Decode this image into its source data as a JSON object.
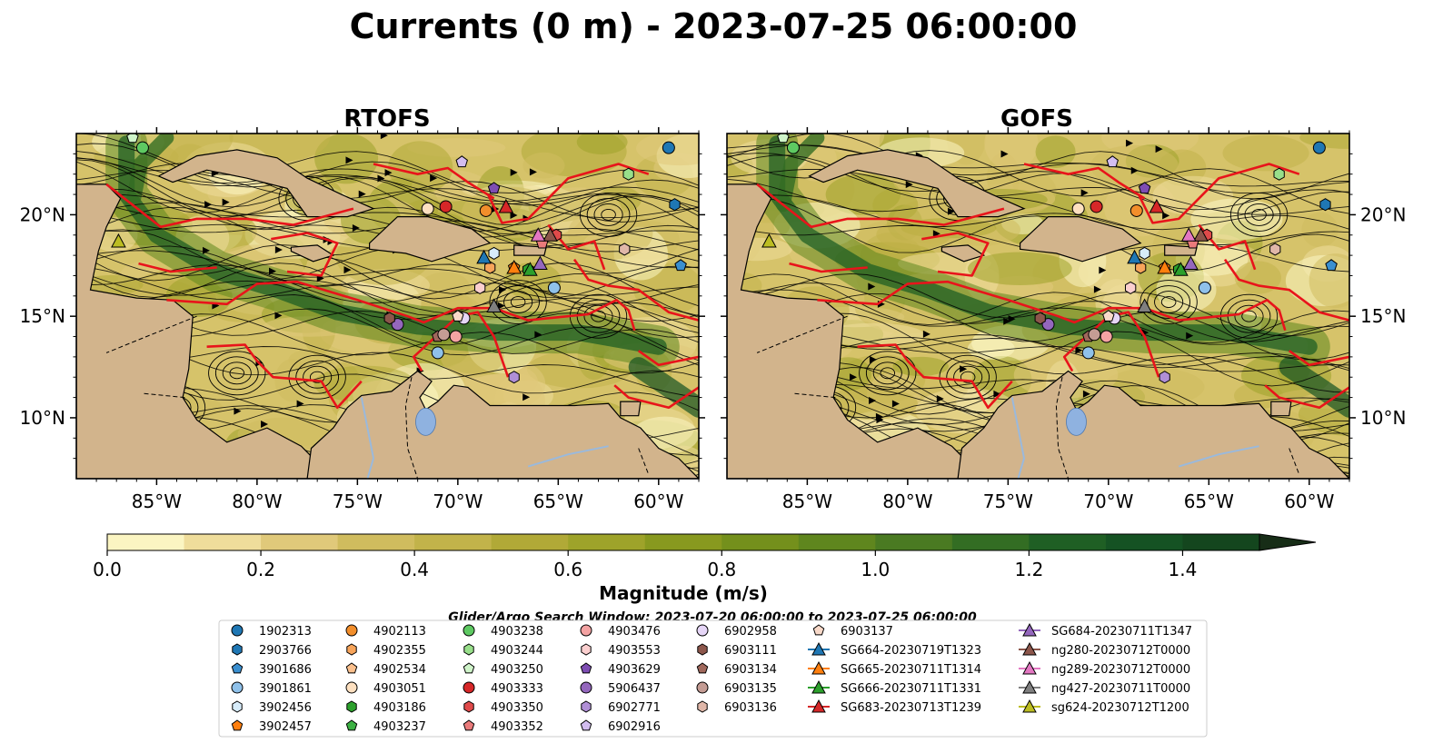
{
  "figure": {
    "title": "Currents (0 m) - 2023-07-25 06:00:00",
    "window_note": "Glider/Argo Search Window: 2023-07-20 06:00:00 to 2023-07-25 06:00:00"
  },
  "chart_data": {
    "type": "heatmap",
    "description_axes": {
      "x_ticks": [
        "85°W",
        "80°W",
        "75°W",
        "70°W",
        "65°W",
        "60°W"
      ],
      "x_tick_values": [
        -85,
        -80,
        -75,
        -70,
        -65,
        -60
      ],
      "y_ticks": [
        "20°N",
        "15°N",
        "10°N"
      ],
      "y_tick_values": [
        20,
        15,
        10
      ],
      "xlim": [
        -89,
        -58
      ],
      "ylim": [
        7,
        24
      ]
    },
    "panels": [
      {
        "title": "RTOFS"
      },
      {
        "title": "GOFS"
      }
    ],
    "colorbar": {
      "label": "Magnitude (m/s)",
      "ticks": [
        "0.0",
        "0.2",
        "0.4",
        "0.6",
        "0.8",
        "1.0",
        "1.2",
        "1.4"
      ],
      "tick_values": [
        0.0,
        0.2,
        0.4,
        0.6,
        0.8,
        1.0,
        1.2,
        1.4
      ],
      "range": [
        0.0,
        1.5
      ],
      "extend": "max",
      "colors": [
        "#fbf5c2",
        "#efdd9b",
        "#e0c97a",
        "#d0bc5e",
        "#c2b34a",
        "#b1a937",
        "#9ea32a",
        "#88991f",
        "#74901c",
        "#5f861e",
        "#4a7a22",
        "#336d23",
        "#1f5f24",
        "#155223",
        "#14461e",
        "#163a1b",
        "#172d17"
      ]
    },
    "legend": {
      "columns": [
        [
          {
            "label": "1902313",
            "marker": "circle",
            "color": "#1f77b4"
          },
          {
            "label": "2903766",
            "marker": "hexagon",
            "color": "#1f77b4"
          },
          {
            "label": "3901686",
            "marker": "pentagon",
            "color": "#3a8fd0"
          },
          {
            "label": "3901861",
            "marker": "circle",
            "color": "#8fc1ea"
          },
          {
            "label": "3902456",
            "marker": "hexagon",
            "color": "#d7ecfa"
          },
          {
            "label": "3902457",
            "marker": "pentagon",
            "color": "#ff7f0e"
          }
        ],
        [
          {
            "label": "4902113",
            "marker": "circle",
            "color": "#f28e2b"
          },
          {
            "label": "4902355",
            "marker": "hexagon",
            "color": "#f7a45a"
          },
          {
            "label": "4902534",
            "marker": "pentagon",
            "color": "#fbc08d"
          },
          {
            "label": "4903051",
            "marker": "circle",
            "color": "#fde0c0"
          },
          {
            "label": "4903186",
            "marker": "hexagon",
            "color": "#2ca02c"
          },
          {
            "label": "4903237",
            "marker": "pentagon",
            "color": "#3cb043"
          }
        ],
        [
          {
            "label": "4903238",
            "marker": "circle",
            "color": "#5ec962"
          },
          {
            "label": "4903244",
            "marker": "hexagon",
            "color": "#98df8a"
          },
          {
            "label": "4903250",
            "marker": "pentagon",
            "color": "#cff4c9"
          },
          {
            "label": "4903333",
            "marker": "circle",
            "color": "#d62728"
          },
          {
            "label": "4903350",
            "marker": "hexagon",
            "color": "#e04a4a"
          },
          {
            "label": "4903352",
            "marker": "pentagon",
            "color": "#ea7b7b"
          }
        ],
        [
          {
            "label": "4903476",
            "marker": "circle",
            "color": "#f4a3a3"
          },
          {
            "label": "4903553",
            "marker": "hexagon",
            "color": "#fbcfcf"
          },
          {
            "label": "4903629",
            "marker": "pentagon",
            "color": "#7e4db3"
          },
          {
            "label": "5906437",
            "marker": "circle",
            "color": "#9467bd"
          },
          {
            "label": "6902771",
            "marker": "hexagon",
            "color": "#b08fd6"
          },
          {
            "label": "6902916",
            "marker": "pentagon",
            "color": "#d3bdf0"
          }
        ],
        [
          {
            "label": "6902958",
            "marker": "circle",
            "color": "#e6d6f7"
          },
          {
            "label": "6903111",
            "marker": "hexagon",
            "color": "#8c564b"
          },
          {
            "label": "6903134",
            "marker": "pentagon",
            "color": "#a0685c"
          },
          {
            "label": "6903135",
            "marker": "circle",
            "color": "#c49c94"
          },
          {
            "label": "6903136",
            "marker": "hexagon",
            "color": "#e0b7a9"
          }
        ],
        [
          {
            "label": "6903137",
            "marker": "pentagon",
            "color": "#f8d9c9"
          },
          {
            "label": "SG664-20230719T1323",
            "marker": "triangle-line",
            "color": "#1f77b4"
          },
          {
            "label": "SG665-20230711T1314",
            "marker": "triangle-line",
            "color": "#ff7f0e"
          },
          {
            "label": "SG666-20230711T1331",
            "marker": "triangle-line",
            "color": "#2ca02c"
          },
          {
            "label": "SG683-20230713T1239",
            "marker": "triangle-line",
            "color": "#d62728"
          }
        ],
        [
          {
            "label": "SG684-20230711T1347",
            "marker": "triangle-line",
            "color": "#9467bd"
          },
          {
            "label": "ng280-20230712T0000",
            "marker": "triangle-line",
            "color": "#8c564b"
          },
          {
            "label": "ng289-20230712T0000",
            "marker": "triangle-line",
            "color": "#e377c2"
          },
          {
            "label": "ng427-20230711T0000",
            "marker": "triangle-line",
            "color": "#7f7f7f"
          },
          {
            "label": "sg624-20230712T1200",
            "marker": "triangle-line",
            "color": "#bcbd22"
          }
        ]
      ]
    },
    "platform_positions": [
      {
        "label": "1902313",
        "lon": -59.5,
        "lat": 23.3
      },
      {
        "label": "2903766",
        "lon": -59.2,
        "lat": 20.5
      },
      {
        "label": "3901686",
        "lon": -58.9,
        "lat": 17.5
      },
      {
        "label": "3901861",
        "lon": -65.2,
        "lat": 16.4
      },
      {
        "label": "3902456",
        "lon": -68.2,
        "lat": 18.1
      },
      {
        "label": "3902457",
        "lon": -67.2,
        "lat": 17.4
      },
      {
        "label": "4902113",
        "lon": -68.6,
        "lat": 20.2
      },
      {
        "label": "4902355",
        "lon": -68.4,
        "lat": 17.4
      },
      {
        "label": "4903051",
        "lon": -71.5,
        "lat": 20.3
      },
      {
        "label": "4903186",
        "lon": -66.5,
        "lat": 17.3
      },
      {
        "label": "4903238",
        "lon": -85.7,
        "lat": 23.3
      },
      {
        "label": "4903244",
        "lon": -61.5,
        "lat": 22.0
      },
      {
        "label": "4903250",
        "lon": -86.2,
        "lat": 23.8
      },
      {
        "label": "4903333",
        "lon": -70.6,
        "lat": 20.4
      },
      {
        "label": "4903350",
        "lon": -65.1,
        "lat": 19.0
      },
      {
        "label": "4903352",
        "lon": -65.8,
        "lat": 18.6
      },
      {
        "label": "4903476",
        "lon": -70.1,
        "lat": 14.0
      },
      {
        "label": "4903553",
        "lon": -68.9,
        "lat": 16.4
      },
      {
        "label": "4903629",
        "lon": -68.2,
        "lat": 21.3
      },
      {
        "label": "5906437",
        "lon": -73.0,
        "lat": 14.6
      },
      {
        "label": "6902771",
        "lon": -67.2,
        "lat": 12.0
      },
      {
        "label": "6902916",
        "lon": -69.8,
        "lat": 22.6
      },
      {
        "label": "6902958",
        "lon": -69.7,
        "lat": 14.9
      },
      {
        "label": "6903111",
        "lon": -73.4,
        "lat": 14.9
      },
      {
        "label": "6903134",
        "lon": -71.0,
        "lat": 14.0
      },
      {
        "label": "6903135",
        "lon": -70.7,
        "lat": 14.1
      },
      {
        "label": "6903136",
        "lon": -61.7,
        "lat": 18.3
      },
      {
        "label": "6903137",
        "lon": -70.0,
        "lat": 15.0
      },
      {
        "label": "SG664-20230719T1323",
        "lon": -68.7,
        "lat": 17.9
      },
      {
        "label": "SG665-20230711T1314",
        "lon": -67.2,
        "lat": 17.4
      },
      {
        "label": "SG666-20230711T1331",
        "lon": -66.4,
        "lat": 17.3
      },
      {
        "label": "SG683-20230713T1239",
        "lon": -67.6,
        "lat": 20.4
      },
      {
        "label": "SG684-20230711T1347",
        "lon": -65.9,
        "lat": 17.6
      },
      {
        "label": "ng280-20230712T0000",
        "lon": -65.4,
        "lat": 19.0
      },
      {
        "label": "ng289-20230712T0000",
        "lon": -66.0,
        "lat": 19.0
      },
      {
        "label": "ng427-20230711T0000",
        "lon": -68.2,
        "lat": 15.5
      },
      {
        "label": "sg624-20230712T1200",
        "lon": -86.9,
        "lat": 18.7
      },
      {
        "label": "3901861",
        "lon": -71.0,
        "lat": 13.2
      }
    ]
  }
}
